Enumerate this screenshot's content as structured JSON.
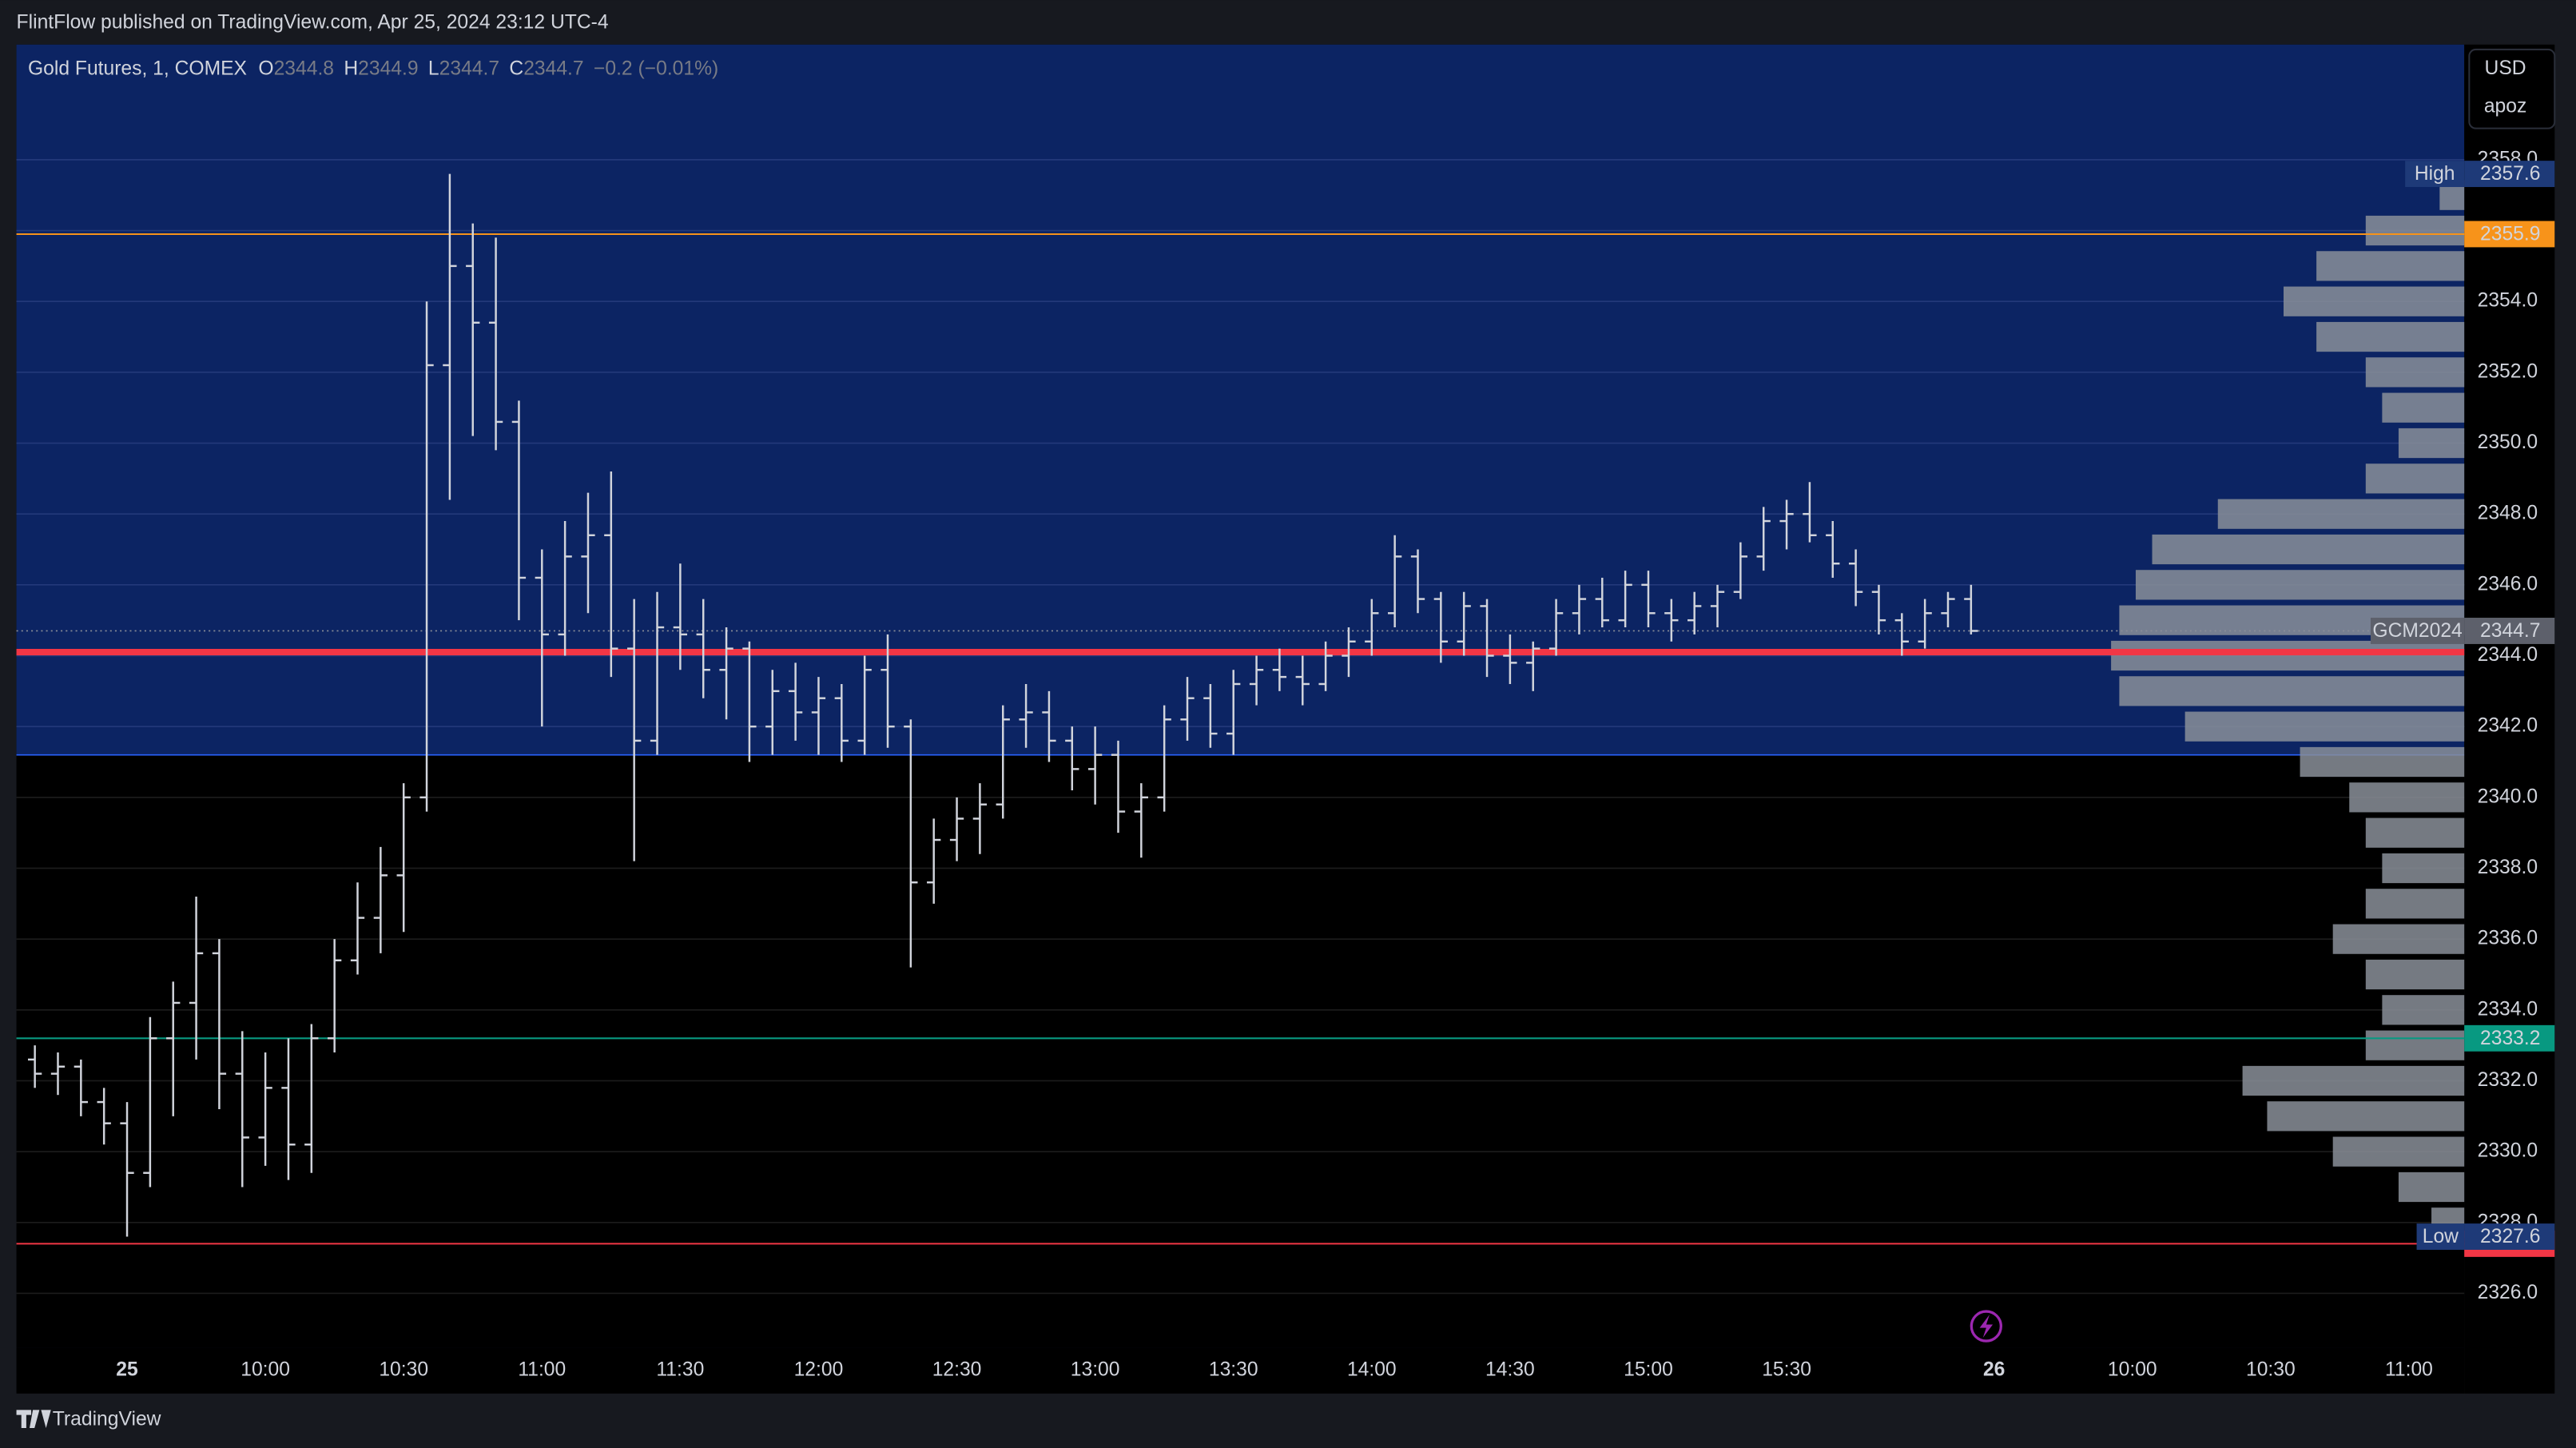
{
  "header": {
    "publisher": "FlintFlow published on TradingView.com, Apr 25, 2024 23:12 UTC-4"
  },
  "footer": {
    "brand": "TradingView"
  },
  "chart_data": {
    "type": "candlestick",
    "title": "Gold Futures, 1, COMEX",
    "legend_keys": [
      "O",
      "H",
      "L",
      "C"
    ],
    "legend_values": [
      2344.8,
      2344.9,
      2344.7,
      2344.7
    ],
    "change": "−0.2 (−0.01%)",
    "currency": "USD",
    "user": "apoz",
    "color": "#d1d4dc",
    "background": "#000000",
    "x": [
      10,
      15,
      20,
      25,
      30,
      35,
      40,
      45,
      50,
      55,
      60,
      65,
      70,
      75,
      80,
      85,
      90,
      95,
      100,
      105,
      110,
      115,
      120,
      125,
      130,
      135,
      140,
      145,
      150,
      155,
      160,
      165,
      170,
      175,
      180,
      185,
      190,
      195,
      200,
      205,
      210,
      215,
      220,
      225,
      230,
      235,
      240,
      245,
      250,
      255,
      260,
      265,
      270,
      275,
      280,
      285,
      290,
      295,
      300,
      305,
      310,
      315,
      320,
      325,
      330,
      335,
      340,
      345,
      350,
      355,
      360,
      365,
      370,
      375,
      380,
      385,
      390,
      395,
      400,
      405,
      410,
      415,
      420,
      425,
      430
    ],
    "ohlc": [
      [
        2332.6,
        2333.0,
        2331.8,
        2332.2
      ],
      [
        2332.2,
        2332.8,
        2331.6,
        2332.4
      ],
      [
        2332.4,
        2332.6,
        2331.0,
        2331.4
      ],
      [
        2331.4,
        2331.8,
        2330.2,
        2330.8
      ],
      [
        2330.8,
        2331.4,
        2327.6,
        2329.4
      ],
      [
        2329.4,
        2333.8,
        2329.0,
        2333.2
      ],
      [
        2333.2,
        2334.8,
        2331.0,
        2334.2
      ],
      [
        2334.2,
        2337.2,
        2332.6,
        2335.6
      ],
      [
        2335.6,
        2336.0,
        2331.2,
        2332.2
      ],
      [
        2332.2,
        2333.4,
        2329.0,
        2330.4
      ],
      [
        2330.4,
        2332.8,
        2329.6,
        2331.8
      ],
      [
        2331.8,
        2333.2,
        2329.2,
        2330.2
      ],
      [
        2330.2,
        2333.6,
        2329.4,
        2333.2
      ],
      [
        2333.2,
        2336.0,
        2332.8,
        2335.4
      ],
      [
        2335.4,
        2337.6,
        2335.0,
        2336.6
      ],
      [
        2336.6,
        2338.6,
        2335.6,
        2337.8
      ],
      [
        2337.8,
        2340.4,
        2336.2,
        2340.0
      ],
      [
        2340.0,
        2354.0,
        2339.6,
        2352.2
      ],
      [
        2352.2,
        2357.6,
        2348.4,
        2355.0
      ],
      [
        2355.0,
        2356.2,
        2350.2,
        2353.4
      ],
      [
        2353.4,
        2355.8,
        2349.8,
        2350.6
      ],
      [
        2350.6,
        2351.2,
        2345.0,
        2346.2
      ],
      [
        2346.2,
        2347.0,
        2342.0,
        2344.6
      ],
      [
        2344.6,
        2347.8,
        2344.0,
        2346.8
      ],
      [
        2346.8,
        2348.6,
        2345.2,
        2347.4
      ],
      [
        2347.4,
        2349.2,
        2343.4,
        2344.2
      ],
      [
        2344.2,
        2345.6,
        2338.2,
        2341.6
      ],
      [
        2341.6,
        2345.8,
        2341.2,
        2344.8
      ],
      [
        2344.8,
        2346.6,
        2343.6,
        2344.6
      ],
      [
        2344.6,
        2345.6,
        2342.8,
        2343.6
      ],
      [
        2343.6,
        2344.8,
        2342.2,
        2344.2
      ],
      [
        2344.2,
        2344.4,
        2341.0,
        2342.0
      ],
      [
        2342.0,
        2343.6,
        2341.2,
        2343.0
      ],
      [
        2343.0,
        2343.8,
        2341.6,
        2342.4
      ],
      [
        2342.4,
        2343.4,
        2341.2,
        2342.8
      ],
      [
        2342.8,
        2343.2,
        2341.0,
        2341.6
      ],
      [
        2341.6,
        2344.0,
        2341.2,
        2343.6
      ],
      [
        2343.6,
        2344.6,
        2341.4,
        2342.0
      ],
      [
        2342.0,
        2342.2,
        2335.2,
        2337.6
      ],
      [
        2337.6,
        2339.4,
        2337.0,
        2338.8
      ],
      [
        2338.8,
        2340.0,
        2338.2,
        2339.4
      ],
      [
        2339.4,
        2340.4,
        2338.4,
        2339.8
      ],
      [
        2339.8,
        2342.6,
        2339.4,
        2342.2
      ],
      [
        2342.2,
        2343.2,
        2341.4,
        2342.4
      ],
      [
        2342.4,
        2343.0,
        2341.0,
        2341.6
      ],
      [
        2341.6,
        2342.0,
        2340.2,
        2340.8
      ],
      [
        2340.8,
        2342.0,
        2339.8,
        2341.2
      ],
      [
        2341.2,
        2341.6,
        2339.0,
        2339.6
      ],
      [
        2339.6,
        2340.4,
        2338.3,
        2340.0
      ],
      [
        2340.0,
        2342.6,
        2339.6,
        2342.2
      ],
      [
        2342.2,
        2343.4,
        2341.6,
        2342.8
      ],
      [
        2342.8,
        2343.2,
        2341.4,
        2341.8
      ],
      [
        2341.8,
        2343.6,
        2341.2,
        2343.2
      ],
      [
        2343.2,
        2344.0,
        2342.6,
        2343.6
      ],
      [
        2343.6,
        2344.2,
        2343.0,
        2343.4
      ],
      [
        2343.4,
        2344.0,
        2342.6,
        2343.2
      ],
      [
        2343.2,
        2344.4,
        2343.0,
        2344.0
      ],
      [
        2344.0,
        2344.8,
        2343.4,
        2344.4
      ],
      [
        2344.4,
        2345.6,
        2344.0,
        2345.2
      ],
      [
        2345.2,
        2347.4,
        2344.8,
        2346.8
      ],
      [
        2346.8,
        2347.0,
        2345.2,
        2345.6
      ],
      [
        2345.6,
        2345.8,
        2343.8,
        2344.4
      ],
      [
        2344.4,
        2345.8,
        2344.0,
        2345.4
      ],
      [
        2345.4,
        2345.6,
        2343.4,
        2344.0
      ],
      [
        2344.0,
        2344.6,
        2343.2,
        2343.8
      ],
      [
        2343.8,
        2344.4,
        2343.0,
        2344.2
      ],
      [
        2344.2,
        2345.6,
        2344.0,
        2345.2
      ],
      [
        2345.2,
        2346.0,
        2344.6,
        2345.6
      ],
      [
        2345.6,
        2346.2,
        2344.8,
        2345.0
      ],
      [
        2345.0,
        2346.4,
        2344.8,
        2346.0
      ],
      [
        2346.0,
        2346.4,
        2344.8,
        2345.2
      ],
      [
        2345.2,
        2345.6,
        2344.4,
        2345.0
      ],
      [
        2345.0,
        2345.8,
        2344.6,
        2345.4
      ],
      [
        2345.4,
        2346.0,
        2344.8,
        2345.8
      ],
      [
        2345.8,
        2347.2,
        2345.6,
        2346.8
      ],
      [
        2346.8,
        2348.2,
        2346.4,
        2347.8
      ],
      [
        2347.8,
        2348.4,
        2347.0,
        2348.0
      ],
      [
        2348.0,
        2348.9,
        2347.2,
        2347.4
      ],
      [
        2347.4,
        2347.8,
        2346.2,
        2346.6
      ],
      [
        2346.6,
        2347.0,
        2345.4,
        2345.8
      ],
      [
        2345.8,
        2346.0,
        2344.6,
        2345.0
      ],
      [
        2345.0,
        2345.2,
        2344.0,
        2344.4
      ],
      [
        2344.4,
        2345.6,
        2344.2,
        2345.2
      ],
      [
        2345.2,
        2345.8,
        2344.8,
        2345.6
      ],
      [
        2345.6,
        2346.0,
        2344.6,
        2344.7
      ]
    ],
    "xlim": [
      6,
      537
    ],
    "xticks": [
      {
        "value": 30,
        "label": "25"
      },
      {
        "value": 60,
        "label": "10:00"
      },
      {
        "value": 90,
        "label": "10:30"
      },
      {
        "value": 120,
        "label": "11:00"
      },
      {
        "value": 150,
        "label": "11:30"
      },
      {
        "value": 180,
        "label": "12:00"
      },
      {
        "value": 210,
        "label": "12:30"
      },
      {
        "value": 240,
        "label": "13:00"
      },
      {
        "value": 270,
        "label": "13:30"
      },
      {
        "value": 300,
        "label": "14:00"
      },
      {
        "value": 330,
        "label": "14:30"
      },
      {
        "value": 360,
        "label": "15:00"
      },
      {
        "value": 390,
        "label": "15:30"
      },
      {
        "value": 435,
        "label": "26"
      },
      {
        "value": 465,
        "label": "10:00"
      },
      {
        "value": 495,
        "label": "10:30"
      },
      {
        "value": 525,
        "label": "11:00"
      }
    ],
    "ylim": [
      2324.47,
      2361.25
    ],
    "yticks": [
      {
        "value": 2326,
        "label": "2326.0"
      },
      {
        "value": 2328,
        "label": "2328.0"
      },
      {
        "value": 2330,
        "label": "2330.0"
      },
      {
        "value": 2332,
        "label": "2332.0"
      },
      {
        "value": 2334,
        "label": "2334.0"
      },
      {
        "value": 2336,
        "label": "2336.0"
      },
      {
        "value": 2338,
        "label": "2338.0"
      },
      {
        "value": 2340,
        "label": "2340.0"
      },
      {
        "value": 2342,
        "label": "2342.0"
      },
      {
        "value": 2344,
        "label": "2344.0"
      },
      {
        "value": 2346,
        "label": "2346.0"
      },
      {
        "value": 2348,
        "label": "2348.0"
      },
      {
        "value": 2350,
        "label": "2350.0"
      },
      {
        "value": 2352,
        "label": "2352.0"
      },
      {
        "value": 2354,
        "label": "2354.0"
      },
      {
        "value": 2356,
        "label": "2356.0"
      },
      {
        "value": 2358,
        "label": "2358.0"
      }
    ],
    "grid": true,
    "volume_profile": {
      "color": "#8a8f99",
      "value_area_color": "#0c2463",
      "value_area_low": 2341.2,
      "poc": 2344.1,
      "poc_color": "#f23645",
      "prices": [
        2328,
        2329,
        2330,
        2331,
        2332,
        2333,
        2334,
        2335,
        2336,
        2337,
        2338,
        2339,
        2340,
        2341,
        2342,
        2343,
        2344,
        2345,
        2346,
        2347,
        2348,
        2349,
        2350,
        2351,
        2352,
        2353,
        2354,
        2355,
        2356,
        2357
      ],
      "volumes": [
        20,
        40,
        80,
        120,
        135,
        60,
        50,
        60,
        80,
        60,
        50,
        60,
        70,
        100,
        170,
        210,
        215,
        210,
        200,
        190,
        150,
        60,
        40,
        50,
        60,
        90,
        110,
        90,
        60,
        15
      ]
    },
    "lines": [
      {
        "value": 2355.9,
        "color": "#f7931a"
      },
      {
        "value": 2333.2,
        "color": "#089981"
      },
      {
        "value": 2327.4,
        "color": "#f23645"
      }
    ],
    "price_line": {
      "name": "GCM2024",
      "value": 2344.7,
      "color": "#5d606b"
    },
    "high": {
      "name": "High",
      "value": 2357.6,
      "color": "#1e3a78"
    },
    "low": {
      "name": "Low",
      "value": 2327.6,
      "color": "#1e3a78"
    }
  }
}
